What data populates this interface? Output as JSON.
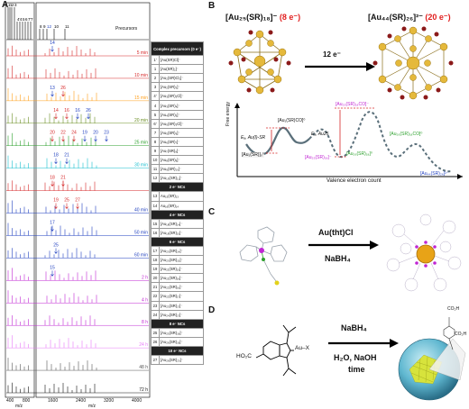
{
  "panel_a": {
    "letter": "A",
    "precursors_label": "Precursors",
    "precursor_peaks": [
      "1'",
      "1",
      "2",
      "3",
      "4'",
      "4",
      "5",
      "6",
      "7'",
      "7",
      "8",
      "9",
      "12",
      "10",
      "11"
    ],
    "xaxis_left": {
      "ticks": [
        "400",
        "800"
      ],
      "label": "m/z"
    },
    "xaxis_right": {
      "ticks": [
        "1600",
        "2400",
        "3200",
        "4000"
      ],
      "label": "m/z"
    },
    "traces": [
      {
        "time": "5 min",
        "color": "#d62728",
        "labels": [
          {
            "t": "14",
            "c": "#1f3fbf"
          }
        ]
      },
      {
        "time": "10 min",
        "color": "#d62728",
        "labels": []
      },
      {
        "time": "15 min",
        "color": "#ff9f1c",
        "labels": [
          {
            "t": "13",
            "c": "#1f3fbf"
          },
          {
            "t": "26",
            "c": "#d62728"
          }
        ]
      },
      {
        "time": "20 min",
        "color": "#6b8e23",
        "labels": [
          {
            "t": "14",
            "c": "#d62728"
          },
          {
            "t": "16",
            "c": "#d62728"
          },
          {
            "t": "16",
            "c": "#1f3fbf"
          },
          {
            "t": "26",
            "c": "#1f3fbf"
          }
        ]
      },
      {
        "time": "25 min",
        "color": "#2ca02c",
        "labels": [
          {
            "t": "20",
            "c": "#d62728"
          },
          {
            "t": "22",
            "c": "#d62728"
          },
          {
            "t": "24",
            "c": "#d62728"
          },
          {
            "t": "19",
            "c": "#1f3fbf"
          },
          {
            "t": "20",
            "c": "#1f3fbf"
          },
          {
            "t": "23",
            "c": "#1f3fbf"
          }
        ]
      },
      {
        "time": "30 min",
        "color": "#17becf",
        "labels": [
          {
            "t": "18",
            "c": "#1f3fbf"
          },
          {
            "t": "21",
            "c": "#1f3fbf"
          }
        ]
      },
      {
        "time": "",
        "color": "#d62728",
        "labels": [
          {
            "t": "18",
            "c": "#d62728"
          },
          {
            "t": "21",
            "c": "#d62728"
          }
        ]
      },
      {
        "time": "40 min",
        "color": "#1f3fbf",
        "labels": [
          {
            "t": "19",
            "c": "#d62728"
          },
          {
            "t": "25",
            "c": "#d62728"
          },
          {
            "t": "27",
            "c": "#d62728"
          }
        ]
      },
      {
        "time": "50 min",
        "color": "#1f3fbf",
        "labels": [
          {
            "t": "17",
            "c": "#1f3fbf"
          }
        ]
      },
      {
        "time": "60 min",
        "color": "#1f3fbf",
        "labels": [
          {
            "t": "25",
            "c": "#1f3fbf"
          }
        ]
      },
      {
        "time": "2 h",
        "color": "#c026d3",
        "labels": [
          {
            "t": "15",
            "c": "#1f3fbf"
          }
        ]
      },
      {
        "time": "4 h",
        "color": "#c026d3",
        "labels": []
      },
      {
        "time": "8 h",
        "color": "#c026d3",
        "labels": []
      },
      {
        "time": "24 h",
        "color": "#e879f9",
        "labels": []
      },
      {
        "time": "48 h",
        "color": "#555555",
        "labels": []
      },
      {
        "time": "72 h",
        "color": "#111111",
        "labels": []
      }
    ],
    "table": {
      "header": "Complex precursors (0 e⁻)",
      "rows": [
        {
          "type": "row",
          "n": "1'",
          "f": "[Au(SR)Cl]⁻"
        },
        {
          "type": "row",
          "n": "1",
          "f": "[Au(SR)₂]⁻"
        },
        {
          "type": "row",
          "n": "2",
          "f": "[Au₂(SR)Cl₂]⁻"
        },
        {
          "type": "row",
          "n": "3",
          "f": "[Au₂(SR)₃]⁻"
        },
        {
          "type": "row",
          "n": "4'",
          "f": "[Au₃(SR)₃Cl]⁻"
        },
        {
          "type": "row",
          "n": "4",
          "f": "[Au₃(SR)₄]⁻"
        },
        {
          "type": "row",
          "n": "5",
          "f": "[Au₄(SR)₅]⁻"
        },
        {
          "type": "row",
          "n": "6'",
          "f": "[Au₅(SR)₅Cl]⁻"
        },
        {
          "type": "row",
          "n": "7",
          "f": "[Au₅(SR)₆]⁻"
        },
        {
          "type": "row",
          "n": "8",
          "f": "[Au₆(SR)₇]⁻"
        },
        {
          "type": "row",
          "n": "9",
          "f": "[Au₇(SR)₈]⁻"
        },
        {
          "type": "row",
          "n": "10",
          "f": "[Au₈(SR)₉]⁻"
        },
        {
          "type": "row",
          "n": "11",
          "f": "[Au₉(SR)₁₀]⁻"
        },
        {
          "type": "row",
          "n": "12",
          "f": "[Au₁₀(SR)₁₁]⁻"
        },
        {
          "type": "hdr",
          "f": "2 e⁻ NCs"
        },
        {
          "type": "row",
          "n": "13",
          "f": "Au₁₅(SR)₁₃"
        },
        {
          "type": "row",
          "n": "14",
          "f": "Au₁₆(SR)₁₄"
        },
        {
          "type": "hdr",
          "f": "4 e⁻ NCs"
        },
        {
          "type": "row",
          "n": "15",
          "f": "[Au₁₈(SR)₁₄]⁻"
        },
        {
          "type": "row",
          "n": "16",
          "f": "[Au₁₉(SR)₁₅]⁻"
        },
        {
          "type": "hdr",
          "f": "6 e⁻ NCs"
        },
        {
          "type": "row",
          "n": "17",
          "f": "[Au₂₀(SR)₁₄]⁻"
        },
        {
          "type": "row",
          "n": "18",
          "f": "[Au₂₀(SR)₁₅]⁻"
        },
        {
          "type": "row",
          "n": "19",
          "f": "[Au₂₁(SR)₁₅]⁻"
        },
        {
          "type": "row",
          "n": "20",
          "f": "[Au₂₁(SR)₁₆]⁻"
        },
        {
          "type": "row",
          "n": "21",
          "f": "[Au₂₂(SR)₁₆]⁻"
        },
        {
          "type": "row",
          "n": "22",
          "f": "[Au₂₂(SR)₁₇]⁻"
        },
        {
          "type": "row",
          "n": "23",
          "f": "[Au₂₃(SR)₁₇]⁻"
        },
        {
          "type": "row",
          "n": "24",
          "f": "[Au₂₄(SR)₁₇]⁻"
        },
        {
          "type": "hdr",
          "f": "8 e⁻ NCs"
        },
        {
          "type": "row",
          "n": "25",
          "f": "[Au₂₅(SR)₁₈]⁻"
        },
        {
          "type": "row",
          "n": "26",
          "f": "[Au₂₆(SR)₁₉]⁻"
        },
        {
          "type": "hdr",
          "f": "10 e⁻ NCs"
        },
        {
          "type": "row",
          "n": "27",
          "f": "[Au₂₈(SR)₂₀]⁻"
        }
      ]
    }
  },
  "panel_b": {
    "letter": "B",
    "left_formula": "[Au₂₅(SR)₁₈]⁻",
    "left_electrons": "(8 e⁻)",
    "right_formula": "[Au₄₄(SR)₂₆]²⁻",
    "right_electrons": "(20 e⁻)",
    "arrow_label": "12 e⁻",
    "y_axis": "Free energy",
    "x_axis": "Valence electron count",
    "annotations": {
      "au1sr_co": "[Au₁(SR)CO]⁰",
      "au1sr": "[Au₁(SR)]₀⁰",
      "ea_au1": "Eₐ, Au(I)-SR",
      "ea_au25": "Eₐ, Au25",
      "au25_sr18_co": "[Au₂₅(SR)₁₈CO]⁻",
      "au25_sr18": "[Au₂₅(SR)₁₈]⁻",
      "au26_sr18": "[Au₂₆(SR)₁₈]⁰",
      "au26_sr18_co": "[Au₂₆(SR)₁₈CO]⁰",
      "au44_sr26": "[Au₄₄(SR)₂₆]²⁻"
    }
  },
  "panel_c": {
    "letter": "C",
    "reagent_top": "Au(tht)Cl",
    "reagent_bottom": "NaBH₄"
  },
  "panel_d": {
    "letter": "D",
    "reagent_top": "NaBH₄",
    "reagent_bottom_1": "H₂O, NaOH",
    "reagent_bottom_2": "time",
    "ho2c_left": "HO₂C",
    "au_x": "Au–X",
    "co2h_right": "CO₂H"
  }
}
